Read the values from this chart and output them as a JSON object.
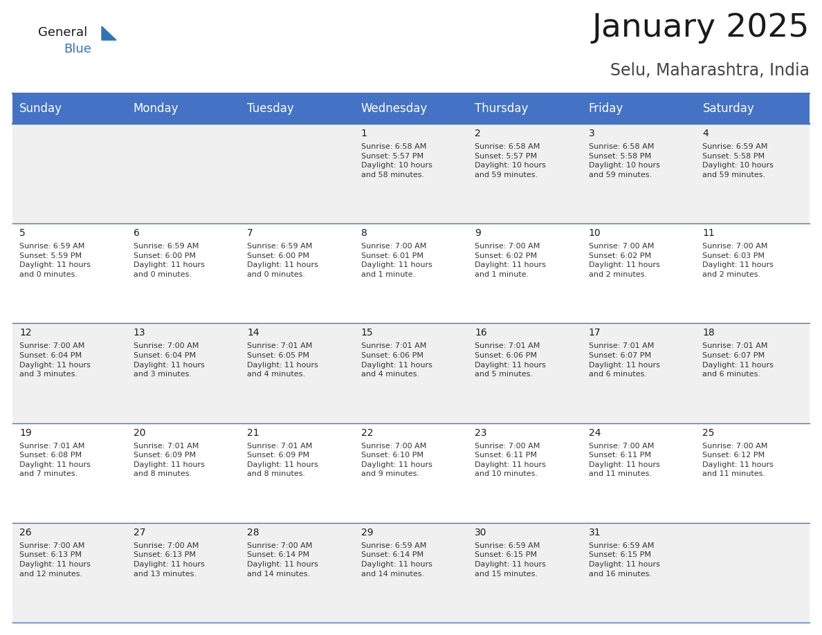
{
  "title": "January 2025",
  "subtitle": "Selu, Maharashtra, India",
  "header_color": "#4472C4",
  "header_text_color": "#FFFFFF",
  "background_color": "#FFFFFF",
  "alt_row_color": "#F0F0F0",
  "border_color": "#4472C4",
  "days_of_week": [
    "Sunday",
    "Monday",
    "Tuesday",
    "Wednesday",
    "Thursday",
    "Friday",
    "Saturday"
  ],
  "title_fontsize": 34,
  "subtitle_fontsize": 17,
  "header_fontsize": 12,
  "cell_day_fontsize": 10,
  "cell_text_fontsize": 8,
  "calendar": [
    [
      {
        "day": "",
        "sunrise": "",
        "sunset": "",
        "daylight_hours": "",
        "daylight_mins": ""
      },
      {
        "day": "",
        "sunrise": "",
        "sunset": "",
        "daylight_hours": "",
        "daylight_mins": ""
      },
      {
        "day": "",
        "sunrise": "",
        "sunset": "",
        "daylight_hours": "",
        "daylight_mins": ""
      },
      {
        "day": "1",
        "sunrise": "6:58 AM",
        "sunset": "5:57 PM",
        "daylight_hours": "10",
        "daylight_mins": "58 minutes."
      },
      {
        "day": "2",
        "sunrise": "6:58 AM",
        "sunset": "5:57 PM",
        "daylight_hours": "10",
        "daylight_mins": "59 minutes."
      },
      {
        "day": "3",
        "sunrise": "6:58 AM",
        "sunset": "5:58 PM",
        "daylight_hours": "10",
        "daylight_mins": "59 minutes."
      },
      {
        "day": "4",
        "sunrise": "6:59 AM",
        "sunset": "5:58 PM",
        "daylight_hours": "10",
        "daylight_mins": "59 minutes."
      }
    ],
    [
      {
        "day": "5",
        "sunrise": "6:59 AM",
        "sunset": "5:59 PM",
        "daylight_hours": "11",
        "daylight_mins": "0 minutes."
      },
      {
        "day": "6",
        "sunrise": "6:59 AM",
        "sunset": "6:00 PM",
        "daylight_hours": "11",
        "daylight_mins": "0 minutes."
      },
      {
        "day": "7",
        "sunrise": "6:59 AM",
        "sunset": "6:00 PM",
        "daylight_hours": "11",
        "daylight_mins": "0 minutes."
      },
      {
        "day": "8",
        "sunrise": "7:00 AM",
        "sunset": "6:01 PM",
        "daylight_hours": "11",
        "daylight_mins": "1 minute."
      },
      {
        "day": "9",
        "sunrise": "7:00 AM",
        "sunset": "6:02 PM",
        "daylight_hours": "11",
        "daylight_mins": "1 minute."
      },
      {
        "day": "10",
        "sunrise": "7:00 AM",
        "sunset": "6:02 PM",
        "daylight_hours": "11",
        "daylight_mins": "2 minutes."
      },
      {
        "day": "11",
        "sunrise": "7:00 AM",
        "sunset": "6:03 PM",
        "daylight_hours": "11",
        "daylight_mins": "2 minutes."
      }
    ],
    [
      {
        "day": "12",
        "sunrise": "7:00 AM",
        "sunset": "6:04 PM",
        "daylight_hours": "11",
        "daylight_mins": "3 minutes."
      },
      {
        "day": "13",
        "sunrise": "7:00 AM",
        "sunset": "6:04 PM",
        "daylight_hours": "11",
        "daylight_mins": "3 minutes."
      },
      {
        "day": "14",
        "sunrise": "7:01 AM",
        "sunset": "6:05 PM",
        "daylight_hours": "11",
        "daylight_mins": "4 minutes."
      },
      {
        "day": "15",
        "sunrise": "7:01 AM",
        "sunset": "6:06 PM",
        "daylight_hours": "11",
        "daylight_mins": "4 minutes."
      },
      {
        "day": "16",
        "sunrise": "7:01 AM",
        "sunset": "6:06 PM",
        "daylight_hours": "11",
        "daylight_mins": "5 minutes."
      },
      {
        "day": "17",
        "sunrise": "7:01 AM",
        "sunset": "6:07 PM",
        "daylight_hours": "11",
        "daylight_mins": "6 minutes."
      },
      {
        "day": "18",
        "sunrise": "7:01 AM",
        "sunset": "6:07 PM",
        "daylight_hours": "11",
        "daylight_mins": "6 minutes."
      }
    ],
    [
      {
        "day": "19",
        "sunrise": "7:01 AM",
        "sunset": "6:08 PM",
        "daylight_hours": "11",
        "daylight_mins": "7 minutes."
      },
      {
        "day": "20",
        "sunrise": "7:01 AM",
        "sunset": "6:09 PM",
        "daylight_hours": "11",
        "daylight_mins": "8 minutes."
      },
      {
        "day": "21",
        "sunrise": "7:01 AM",
        "sunset": "6:09 PM",
        "daylight_hours": "11",
        "daylight_mins": "8 minutes."
      },
      {
        "day": "22",
        "sunrise": "7:00 AM",
        "sunset": "6:10 PM",
        "daylight_hours": "11",
        "daylight_mins": "9 minutes."
      },
      {
        "day": "23",
        "sunrise": "7:00 AM",
        "sunset": "6:11 PM",
        "daylight_hours": "11",
        "daylight_mins": "10 minutes."
      },
      {
        "day": "24",
        "sunrise": "7:00 AM",
        "sunset": "6:11 PM",
        "daylight_hours": "11",
        "daylight_mins": "11 minutes."
      },
      {
        "day": "25",
        "sunrise": "7:00 AM",
        "sunset": "6:12 PM",
        "daylight_hours": "11",
        "daylight_mins": "11 minutes."
      }
    ],
    [
      {
        "day": "26",
        "sunrise": "7:00 AM",
        "sunset": "6:13 PM",
        "daylight_hours": "11",
        "daylight_mins": "12 minutes."
      },
      {
        "day": "27",
        "sunrise": "7:00 AM",
        "sunset": "6:13 PM",
        "daylight_hours": "11",
        "daylight_mins": "13 minutes."
      },
      {
        "day": "28",
        "sunrise": "7:00 AM",
        "sunset": "6:14 PM",
        "daylight_hours": "11",
        "daylight_mins": "14 minutes."
      },
      {
        "day": "29",
        "sunrise": "6:59 AM",
        "sunset": "6:14 PM",
        "daylight_hours": "11",
        "daylight_mins": "14 minutes."
      },
      {
        "day": "30",
        "sunrise": "6:59 AM",
        "sunset": "6:15 PM",
        "daylight_hours": "11",
        "daylight_mins": "15 minutes."
      },
      {
        "day": "31",
        "sunrise": "6:59 AM",
        "sunset": "6:15 PM",
        "daylight_hours": "11",
        "daylight_mins": "16 minutes."
      },
      {
        "day": "",
        "sunrise": "",
        "sunset": "",
        "daylight_hours": "",
        "daylight_mins": ""
      }
    ]
  ]
}
